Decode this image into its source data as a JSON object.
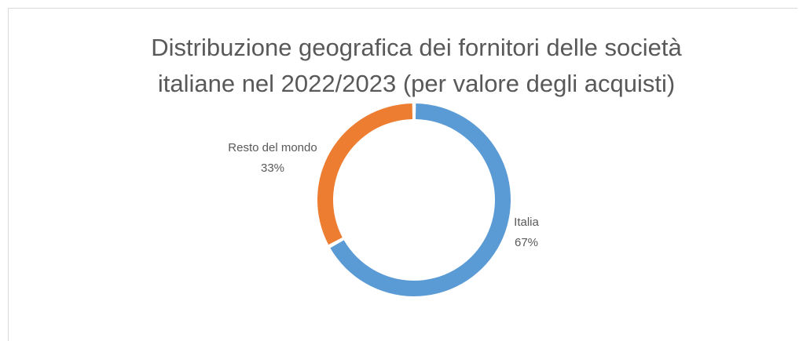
{
  "chart_data": {
    "type": "pie",
    "title_line1": "Distribuzione geografica dei fornitori delle società",
    "title_line2": "italiane nel 2022/2023 (per valore degli acquisti)",
    "donut": true,
    "slices": [
      {
        "label": "Italia",
        "value": 67,
        "value_label": "67%",
        "color": "#5b9bd5"
      },
      {
        "label": "Resto del mondo",
        "value": 33,
        "value_label": "33%",
        "color": "#ed7d31"
      }
    ]
  }
}
